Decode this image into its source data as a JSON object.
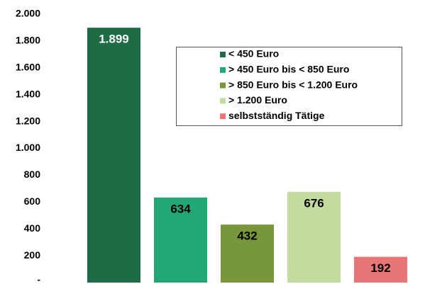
{
  "chart_data": {
    "type": "bar",
    "categories": [
      null
    ],
    "series": [
      {
        "name": "< 450 Euro",
        "color": "#1e6b46",
        "values": [
          1899
        ],
        "value_labels": [
          "1.899"
        ],
        "label_color": "#ffffff"
      },
      {
        "name": "> 450 Euro bis < 850 Euro",
        "color": "#22a673",
        "values": [
          634
        ],
        "label_color": "#000000"
      },
      {
        "name": "> 850 Euro bis < 1.200 Euro",
        "color": "#78963a",
        "values": [
          432
        ],
        "label_color": "#000000"
      },
      {
        "name": "> 1.200 Euro",
        "color": "#c4dba0",
        "values": [
          676
        ],
        "label_color": "#000000"
      },
      {
        "name": "selbstständig Tätige",
        "color": "#e97676",
        "values": [
          192
        ],
        "label_color": "#000000"
      }
    ],
    "ylim": [
      0,
      2000
    ],
    "yticks": [
      {
        "value": 0,
        "label": "-"
      },
      200,
      400,
      600,
      800,
      {
        "value": 1000,
        "label": "1.000"
      },
      {
        "value": 1200,
        "label": "1.200"
      },
      {
        "value": 1400,
        "label": "1.400"
      },
      {
        "value": 1600,
        "label": "1.600"
      },
      {
        "value": 1800,
        "label": "1.800"
      },
      {
        "value": 2000,
        "label": "2.000"
      }
    ],
    "grid": false,
    "legend": "upper right"
  }
}
